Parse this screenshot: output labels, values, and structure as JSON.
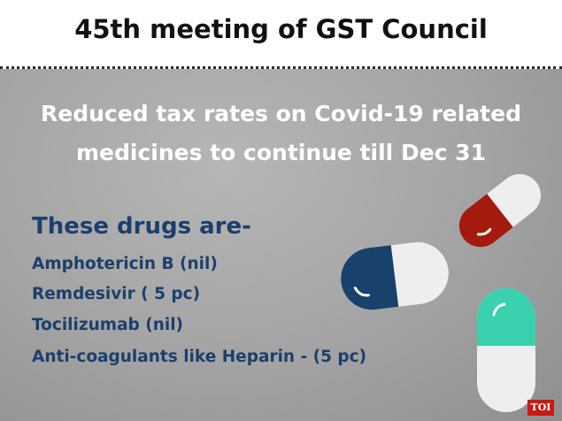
{
  "header": {
    "title": "45th meeting of GST Council"
  },
  "headline": {
    "line1": "Reduced tax rates on Covid-19 related",
    "line2": "medicines to continue till Dec 31"
  },
  "drugs": {
    "intro": "These drugs are-",
    "items": [
      "Amphotericin B (nil)",
      "Remdesivir ( 5 pc)",
      "Tocilizumab (nil)",
      "Anti-coagulants like Heparin - (5 pc)"
    ]
  },
  "badge": {
    "label": "TOI"
  },
  "colors": {
    "drug_text": "#1c3f6c",
    "headline_text": "#ffffff",
    "pill_red": "#a41a0d",
    "pill_blue": "#18416c",
    "pill_teal": "#39d1ae",
    "badge_bg": "#c61a14"
  },
  "icons": [
    "red-capsule-icon",
    "blue-capsule-icon",
    "teal-capsule-icon"
  ]
}
